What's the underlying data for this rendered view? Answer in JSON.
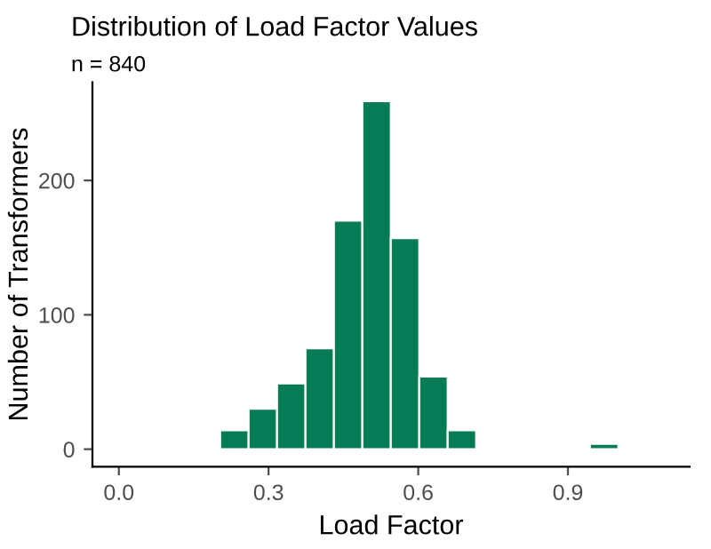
{
  "chart_data": {
    "type": "histogram",
    "title": "Distribution of Load Factor Values",
    "subtitle": "n = 840",
    "xlabel": "Load Factor",
    "ylabel": "Number of Transformers",
    "bins": [
      0.146,
      0.203,
      0.26,
      0.317,
      0.374,
      0.431,
      0.488,
      0.545,
      0.602,
      0.659,
      0.716,
      0.773,
      0.83,
      0.887,
      0.944,
      1.001
    ],
    "values": [
      1,
      14,
      30,
      49,
      75,
      170,
      259,
      157,
      54,
      14,
      0,
      0,
      0,
      0,
      4
    ],
    "color": "#067b56",
    "xlim": [
      -0.053,
      1.144
    ],
    "ylim": [
      -13,
      273
    ],
    "xticks": [
      {
        "value": 0,
        "label": "0.0"
      },
      0.3,
      0.6,
      0.9
    ],
    "yticks": [
      0,
      100,
      200
    ],
    "grid": false
  }
}
